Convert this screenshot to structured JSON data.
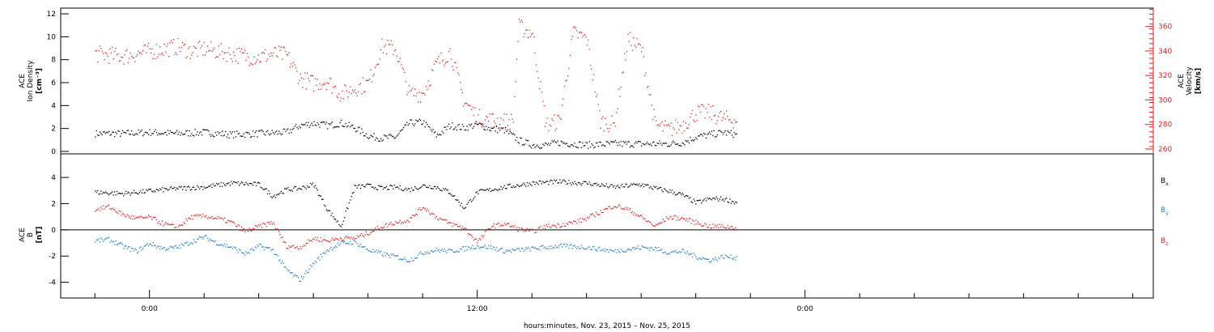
{
  "colors": {
    "black": "#000000",
    "red": "#e41a1c",
    "blue": "#1f7ad6"
  },
  "chart_data": [
    {
      "type": "scatter",
      "panel": "top",
      "ylabel_left": [
        "ACE",
        "Ion Density",
        "[cm⁻³]"
      ],
      "ylabel_right": [
        "ACE",
        "Velocity",
        "[km/s]"
      ],
      "left_axis": {
        "range": [
          0,
          12.5
        ],
        "ticks": [
          0,
          2,
          4,
          6,
          8,
          10,
          12
        ],
        "tick_labels": [
          "0",
          "2",
          "4",
          "6",
          "8",
          "10",
          "12"
        ]
      },
      "right_axis": {
        "range": [
          258,
          375
        ],
        "ticks": [
          260,
          280,
          300,
          320,
          340,
          360
        ],
        "tick_labels": [
          "260",
          "280",
          "300",
          "320",
          "340",
          "360"
        ]
      },
      "series": [
        {
          "axis": "left",
          "color": "black",
          "x": [
            -2.0,
            -1.0,
            0.0,
            1.0,
            2.0,
            3.0,
            4.0,
            5.0,
            5.5,
            6.0,
            6.5,
            7.0,
            7.5,
            8.0,
            8.5,
            9.0,
            9.5,
            10.0,
            10.5,
            11.0,
            11.5,
            12.0,
            12.5,
            13.0,
            13.5,
            14.0,
            14.5,
            15.0,
            16.0,
            17.0,
            18.0,
            19.0,
            19.5,
            20.0,
            20.5,
            21.0,
            21.5
          ],
          "y": [
            1.6,
            1.6,
            1.7,
            1.6,
            1.7,
            1.5,
            1.6,
            1.7,
            2.3,
            2.5,
            2.3,
            2.5,
            2.1,
            1.4,
            1.2,
            1.3,
            2.5,
            2.6,
            1.4,
            2.3,
            2.1,
            2.4,
            2.0,
            1.9,
            1.0,
            0.6,
            0.6,
            0.8,
            0.6,
            0.7,
            0.7,
            0.7,
            0.8,
            1.3,
            1.5,
            1.7,
            1.5
          ]
        },
        {
          "axis": "right",
          "color": "red",
          "x": [
            -2.0,
            -1.0,
            0.0,
            0.5,
            1.0,
            1.5,
            2.0,
            2.5,
            3.0,
            3.5,
            4.0,
            4.5,
            5.0,
            5.5,
            6.0,
            6.5,
            7.0,
            7.5,
            8.0,
            8.5,
            9.0,
            9.5,
            10.0,
            10.5,
            11.0,
            11.5,
            12.0,
            12.5,
            13.0,
            13.3,
            13.5,
            14.0,
            14.5,
            15.0,
            15.5,
            16.0,
            16.5,
            17.0,
            17.5,
            18.0,
            18.5,
            19.0,
            19.5,
            20.0,
            20.5,
            21.0,
            21.5
          ],
          "y": [
            338,
            336,
            340,
            342,
            344,
            340,
            342,
            340,
            338,
            336,
            335,
            338,
            337,
            318,
            314,
            316,
            305,
            310,
            314,
            344,
            342,
            305,
            306,
            330,
            340,
            300,
            286,
            284,
            283,
            283,
            360,
            355,
            280,
            283,
            355,
            350,
            283,
            280,
            350,
            342,
            280,
            276,
            280,
            290,
            290,
            285,
            284
          ]
        }
      ]
    },
    {
      "type": "scatter",
      "panel": "bottom",
      "ylabel": [
        "ACE",
        "B",
        "[nT]"
      ],
      "y_range": [
        -5.2,
        5.8
      ],
      "ticks": [
        -4,
        -2,
        0,
        2,
        4
      ],
      "tick_labels": [
        "-4",
        "-2",
        "0",
        "2",
        "4"
      ],
      "zero_line": true,
      "legend_placement": "right",
      "series": [
        {
          "name": "Bx",
          "color": "black",
          "x": [
            -2.0,
            -1.0,
            0.0,
            1.0,
            2.0,
            3.0,
            4.0,
            4.5,
            5.0,
            5.5,
            6.0,
            6.5,
            7.0,
            7.5,
            8.0,
            8.5,
            9.0,
            9.5,
            10.0,
            10.5,
            11.0,
            11.5,
            12.0,
            12.5,
            13.0,
            14.0,
            15.0,
            16.0,
            17.0,
            18.0,
            18.5,
            19.0,
            19.5,
            20.0,
            20.5,
            21.0,
            21.5
          ],
          "y": [
            2.9,
            2.8,
            3.0,
            3.2,
            3.3,
            3.6,
            3.5,
            2.6,
            3.1,
            3.2,
            3.5,
            1.6,
            0.3,
            3.3,
            3.4,
            3.2,
            3.3,
            3.1,
            3.4,
            3.3,
            2.9,
            1.7,
            2.9,
            3.1,
            3.3,
            3.6,
            3.7,
            3.6,
            3.3,
            3.5,
            3.2,
            3.0,
            2.7,
            2.1,
            2.4,
            2.4,
            2.1
          ]
        },
        {
          "name": "By",
          "color": "blue",
          "x": [
            -2.0,
            -1.5,
            -1.0,
            -0.5,
            0.0,
            0.5,
            1.0,
            1.5,
            2.0,
            2.5,
            3.0,
            3.5,
            4.0,
            4.5,
            5.0,
            5.5,
            6.0,
            6.5,
            7.0,
            7.5,
            8.0,
            8.5,
            9.0,
            9.5,
            10.0,
            10.5,
            11.0,
            11.5,
            12.0,
            12.5,
            13.0,
            14.0,
            15.0,
            16.0,
            17.0,
            18.0,
            18.5,
            19.0,
            19.5,
            20.0,
            20.5,
            21.0,
            21.5
          ],
          "y": [
            -0.8,
            -0.7,
            -1.2,
            -1.6,
            -1.0,
            -1.4,
            -1.3,
            -0.9,
            -0.5,
            -1.0,
            -1.3,
            -1.8,
            -1.2,
            -1.5,
            -3.0,
            -3.8,
            -2.5,
            -1.5,
            -1.0,
            -0.9,
            -1.5,
            -1.8,
            -2.0,
            -2.3,
            -1.7,
            -1.5,
            -1.6,
            -1.4,
            -1.2,
            -1.3,
            -1.6,
            -1.4,
            -1.2,
            -1.3,
            -1.6,
            -1.3,
            -1.4,
            -1.7,
            -1.6,
            -2.0,
            -2.3,
            -2.0,
            -2.1
          ]
        },
        {
          "name": "Bz",
          "color": "red",
          "x": [
            -2.0,
            -1.5,
            -1.0,
            -0.5,
            0.0,
            0.5,
            1.0,
            1.5,
            2.0,
            2.5,
            3.0,
            3.5,
            4.0,
            4.5,
            5.0,
            5.5,
            6.0,
            6.5,
            7.0,
            7.5,
            8.0,
            8.5,
            9.0,
            9.5,
            10.0,
            10.5,
            11.0,
            11.5,
            12.0,
            12.5,
            13.0,
            13.5,
            14.0,
            14.5,
            15.0,
            15.5,
            16.0,
            16.5,
            17.0,
            17.5,
            18.0,
            18.5,
            19.0,
            19.5,
            20.0,
            20.5,
            21.0,
            21.5
          ],
          "y": [
            1.6,
            1.8,
            1.2,
            0.9,
            1.0,
            0.5,
            0.2,
            1.0,
            1.1,
            0.9,
            0.6,
            -0.1,
            0.3,
            0.6,
            -1.2,
            -1.3,
            -0.6,
            -0.8,
            -0.6,
            -0.6,
            -0.2,
            0.3,
            0.6,
            0.8,
            1.8,
            1.0,
            0.5,
            0.2,
            -0.9,
            0.3,
            0.5,
            0.1,
            -0.1,
            0.3,
            0.4,
            0.6,
            0.9,
            1.4,
            1.9,
            1.6,
            1.0,
            0.3,
            1.0,
            0.9,
            0.6,
            0.3,
            0.3,
            0.2
          ]
        }
      ]
    }
  ],
  "x_axis": {
    "label": "hours:minutes, Nov. 23, 2015 – Nov. 25, 2015",
    "range": [
      -3.25,
      36.75
    ],
    "major_ticks": [
      0,
      12,
      24
    ],
    "tick_labels": [
      "0:00",
      "12:00",
      "0:00"
    ],
    "minor_tick_step": 2
  },
  "legend": [
    {
      "label": "B",
      "sub": "x",
      "color": "black"
    },
    {
      "label": "B",
      "sub": "y",
      "color": "blue"
    },
    {
      "label": "B",
      "sub": "z",
      "color": "red"
    }
  ]
}
